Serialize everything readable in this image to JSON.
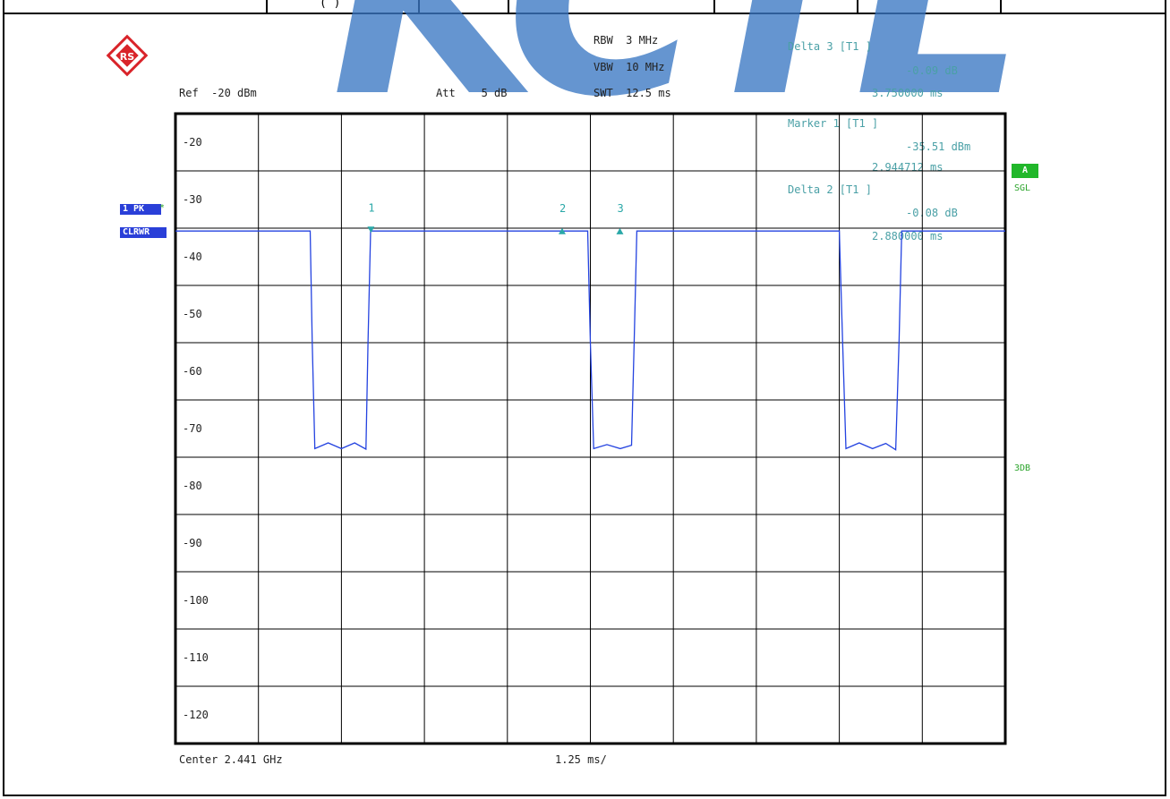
{
  "header_row": {
    "partial_text": "( )"
  },
  "watermark": "KCTL",
  "instrument": {
    "ref": "Ref  -20 dBm",
    "att": "Att    5 dB",
    "rbw": "RBW  3 MHz",
    "vbw": "VBW  10 MHz",
    "swt": "SWT  12.5 ms",
    "center": "Center 2.441 GHz",
    "span_div": "1.25 ms/",
    "trace_tag": "1 PK",
    "trace_mode": "CLRWR",
    "screen_tag": "A",
    "sgl": "SGL",
    "threedb": "3DB"
  },
  "markers_readout": {
    "delta3_title": "Delta 3 [T1 ]",
    "delta3_level": "-0.09 dB",
    "delta3_time": "3.750000 ms",
    "marker1_title": "Marker 1 [T1 ]",
    "marker1_level": "-35.51 dBm",
    "marker1_time": "2.944712 ms",
    "delta2_title": "Delta 2 [T1 ]",
    "delta2_level": "-0.08 dB",
    "delta2_time": "2.880000 ms"
  },
  "colors": {
    "trace": "#2443e0",
    "marker": "#2aa8a8",
    "grid": "#000000"
  },
  "chart_data": {
    "type": "line",
    "title": "",
    "xlabel": "",
    "ylabel": "",
    "x_unit": "ms",
    "xlim": [
      0,
      12.5
    ],
    "ylim": [
      -125,
      -15
    ],
    "y_ticks": [
      -20,
      -30,
      -40,
      -50,
      -60,
      -70,
      -80,
      -90,
      -100,
      -110,
      -120
    ],
    "grid": true,
    "series": [
      {
        "values": [
          [
            0,
            -35.5
          ],
          [
            2.03,
            -35.5
          ],
          [
            2.06,
            -55
          ],
          [
            2.1,
            -73.5
          ],
          [
            2.3,
            -72.5
          ],
          [
            2.5,
            -73.5
          ],
          [
            2.7,
            -72.5
          ],
          [
            2.87,
            -73.6
          ],
          [
            2.9,
            -55
          ],
          [
            2.94,
            -35.5
          ],
          [
            6.21,
            -35.5
          ],
          [
            6.25,
            -55
          ],
          [
            6.3,
            -73.5
          ],
          [
            6.5,
            -72.8
          ],
          [
            6.7,
            -73.5
          ],
          [
            6.87,
            -72.9
          ],
          [
            6.91,
            -55
          ],
          [
            6.95,
            -35.5
          ],
          [
            10.0,
            -35.5
          ],
          [
            10.05,
            -55
          ],
          [
            10.1,
            -73.5
          ],
          [
            10.3,
            -72.5
          ],
          [
            10.5,
            -73.5
          ],
          [
            10.7,
            -72.6
          ],
          [
            10.85,
            -73.7
          ],
          [
            10.9,
            -55
          ],
          [
            10.94,
            -35.5
          ],
          [
            12.5,
            -35.5
          ]
        ]
      }
    ],
    "markers": [
      {
        "label": "1",
        "x": 2.944712,
        "y": -35.51,
        "type": "marker"
      },
      {
        "label": "2",
        "x": 5.824712,
        "y": -35.59,
        "type": "delta"
      },
      {
        "label": "3",
        "x": 6.694712,
        "y": -35.6,
        "type": "delta"
      }
    ]
  }
}
